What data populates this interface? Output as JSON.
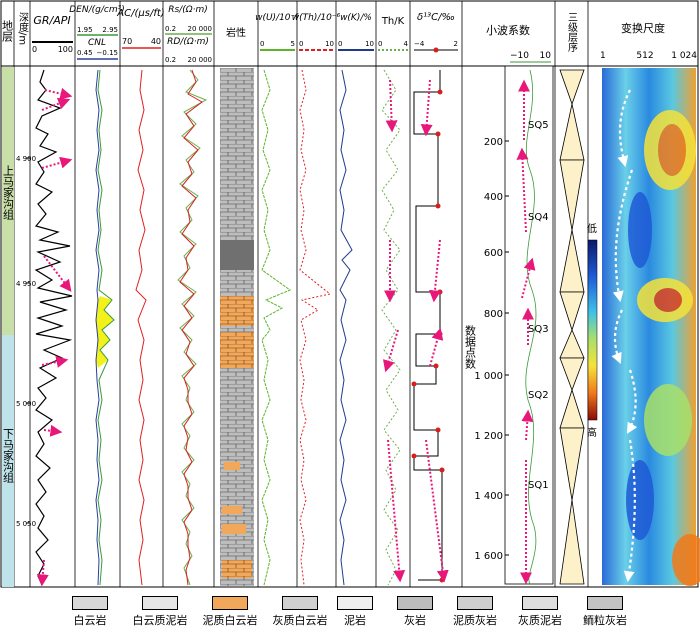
{
  "headers": {
    "layer": "地层",
    "depth": "深度/m",
    "gr": "GR/API",
    "gr_min": "0",
    "gr_max": "100",
    "den": "DEN/(g/cm³)",
    "den_min": "1.95",
    "den_max": "2.95",
    "cnl": "CNL",
    "cnl_min": "0.45",
    "cnl_max": "−0.15",
    "ac": "AC/(μs/ft)",
    "ac_min": "70",
    "ac_max": "40",
    "rs": "Rs/(Ω·m)",
    "rs_min": "0.2",
    "rs_max": "20 000",
    "rd": "RD/(Ω·m)",
    "rd_min": "0.2",
    "rd_max": "20 000",
    "lithology": "岩性",
    "wu": "w(U)/10⁻⁶",
    "wu_min": "0",
    "wu_max": "5",
    "wth": "w(Th)/10⁻⁶",
    "wth_min": "0",
    "wth_max": "10",
    "wk": "w(K)/%",
    "wk_min": "0",
    "wk_max": "10",
    "thk": "Th/K",
    "thk_min": "0",
    "thk_max": "4",
    "d13c": "δ¹³C/‰",
    "d13c_min": "−4",
    "d13c_max": "2",
    "wavelet": "小波系数",
    "wavelet_min": "−10",
    "wavelet_max": "10",
    "seq3": "三级层序",
    "transform": "变换尺度",
    "scale_1": "1",
    "scale_512": "512",
    "scale_1024": "1 024"
  },
  "formations": {
    "upper": "上马家沟组",
    "lower": "下马家沟组"
  },
  "depth_ticks": [
    "4 900",
    "4 950",
    "5 000",
    "5 050"
  ],
  "points_axis_label": "数据点数",
  "points_ticks": [
    "200",
    "400",
    "600",
    "800",
    "1 000",
    "1 200",
    "1 400",
    "1 600"
  ],
  "sequences": [
    "SQ5",
    "SQ4",
    "SQ3",
    "SQ2",
    "SQ1"
  ],
  "colorbar": {
    "low": "低",
    "high": "高"
  },
  "legend": [
    "白云岩",
    "白云质泥岩",
    "泥质白云岩",
    "灰质白云岩",
    "泥岩",
    "灰岩",
    "泥质灰岩",
    "灰质泥岩",
    "鲕粒灰岩"
  ],
  "colors": {
    "formation_upper": "#c8dfa8",
    "formation_lower": "#bfe3ea",
    "gr_line": "#000000",
    "den_line": "#3a9a3a",
    "cnl_line": "#2b3f9a",
    "fill_yellow": "#f2f21a",
    "ac_line": "#e02020",
    "rs_line": "#6ab04c",
    "rd_line": "#d62020",
    "u_line": "#5ab52a",
    "th_line": "#e02020",
    "k_line": "#1f3b8c",
    "thk_line": "#6ab04c",
    "arrow": "#e8187a",
    "seq_fill": "#fdf1c9",
    "lith_gray": "#b8b8b8",
    "lith_orange": "#f2a85a",
    "lith_dark": "#606060"
  }
}
